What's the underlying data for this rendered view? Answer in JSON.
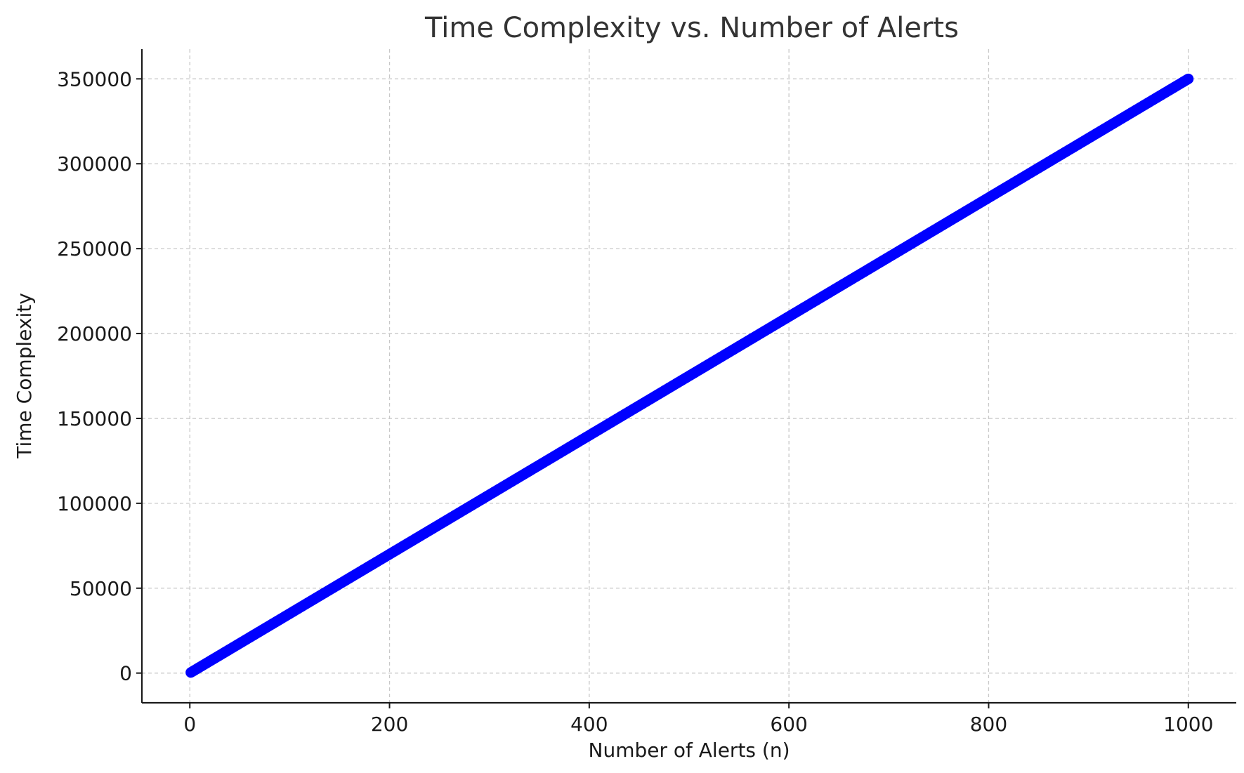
{
  "chart_data": {
    "type": "scatter",
    "title": "Time Complexity vs. Number of Alerts",
    "xlabel": "Number of Alerts (n)",
    "ylabel": "Time Complexity",
    "xlim": [
      -48,
      1048
    ],
    "ylim": [
      -17500,
      367500
    ],
    "x_ticks": [
      0,
      200,
      400,
      600,
      800,
      1000
    ],
    "y_ticks": [
      0,
      50000,
      100000,
      150000,
      200000,
      250000,
      300000,
      350000
    ],
    "grid": true,
    "legend": "none",
    "marker_color": "#0000ff",
    "series": [
      {
        "x_start": 1,
        "x_end": 1000,
        "x_step": 1,
        "slope": 350,
        "intercept": 0
      }
    ]
  }
}
